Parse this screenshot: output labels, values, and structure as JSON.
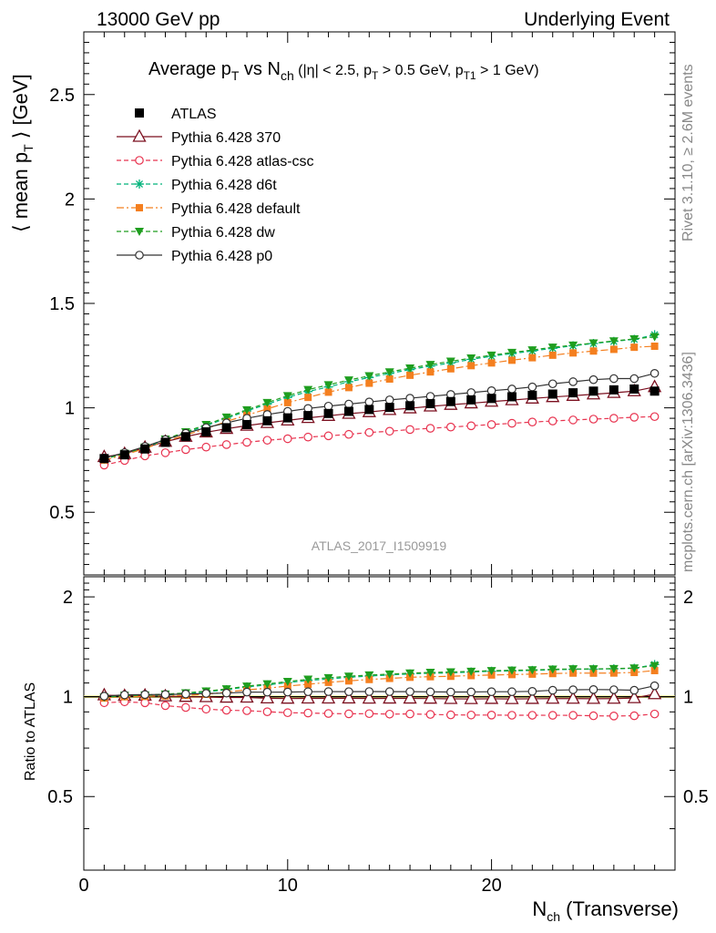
{
  "header": {
    "left": "13000 GeV pp",
    "right": "Underlying Event"
  },
  "title": {
    "main": "Average p",
    "sub_T": "T",
    "vs": " vs N",
    "sub_ch": "ch",
    "cuts_a": " (|η| < 2.5, p",
    "cuts_b": " > 0.5 GeV, p",
    "cuts_sub_T1": "T1",
    "cuts_c": " > 1 GeV)"
  },
  "side_text": {
    "rivet": "Rivet 3.1.10, ≥ 2.6M events",
    "mcplots": "mcplots.cern.ch [arXiv:1306.3436]"
  },
  "watermark": "ATLAS_2017_I1509919",
  "axes": {
    "top_ylabel_a": "⟨ mean p",
    "top_ylabel_sub": "T",
    "top_ylabel_b": " ⟩ [GeV]",
    "bottom_ylabel": "Ratio to ATLAS",
    "xlabel_a": "N",
    "xlabel_sub": "ch",
    "xlabel_b": " (Transverse)",
    "top_yticks": [
      "0.5",
      "1",
      "1.5",
      "2",
      "2.5"
    ],
    "bottom_yticks_left": [
      "0.5",
      "1",
      "2"
    ],
    "bottom_yticks_right": [
      "0.5",
      "1",
      "2"
    ],
    "xticks": [
      "0",
      "10",
      "20"
    ]
  },
  "chart_data": {
    "type": "line",
    "x": [
      1,
      2,
      3,
      4,
      5,
      6,
      7,
      8,
      9,
      10,
      11,
      12,
      13,
      14,
      15,
      16,
      17,
      18,
      19,
      20,
      21,
      22,
      23,
      24,
      25,
      26,
      27,
      28
    ],
    "xlim": [
      0,
      29
    ],
    "top_ylim": [
      0.2,
      2.8
    ],
    "ratio_ylim": [
      0.3,
      2.3
    ],
    "series": [
      {
        "name": "ATLAS",
        "color": "#000000",
        "marker": "filled-square",
        "line": "none",
        "values": [
          0.757,
          0.775,
          0.803,
          0.835,
          0.862,
          0.885,
          0.905,
          0.92,
          0.938,
          0.952,
          0.963,
          0.973,
          0.983,
          0.992,
          1.002,
          1.01,
          1.02,
          1.03,
          1.038,
          1.045,
          1.053,
          1.06,
          1.066,
          1.072,
          1.08,
          1.086,
          1.09,
          1.08
        ]
      },
      {
        "name": "Pythia 6.428 370",
        "color": "#7b0f1f",
        "marker": "open-triangle",
        "line": "solid",
        "values": [
          0.765,
          0.78,
          0.81,
          0.838,
          0.862,
          0.883,
          0.9,
          0.915,
          0.928,
          0.94,
          0.952,
          0.962,
          0.972,
          0.98,
          0.99,
          0.998,
          1.007,
          1.015,
          1.022,
          1.03,
          1.037,
          1.045,
          1.052,
          1.058,
          1.065,
          1.072,
          1.08,
          1.1
        ]
      },
      {
        "name": "Pythia 6.428 atlas-csc",
        "color": "#e8334f",
        "marker": "open-circle",
        "line": "dashed",
        "values": [
          0.726,
          0.748,
          0.77,
          0.785,
          0.8,
          0.812,
          0.824,
          0.835,
          0.845,
          0.852,
          0.86,
          0.866,
          0.873,
          0.882,
          0.888,
          0.896,
          0.902,
          0.908,
          0.914,
          0.92,
          0.926,
          0.932,
          0.937,
          0.942,
          0.946,
          0.95,
          0.955,
          0.958
        ]
      },
      {
        "name": "Pythia 6.428 d6t",
        "color": "#00b27a",
        "marker": "star",
        "line": "dashed",
        "values": [
          0.755,
          0.78,
          0.81,
          0.845,
          0.88,
          0.915,
          0.95,
          0.985,
          1.018,
          1.05,
          1.078,
          1.1,
          1.125,
          1.145,
          1.165,
          1.183,
          1.2,
          1.215,
          1.232,
          1.247,
          1.26,
          1.272,
          1.285,
          1.297,
          1.308,
          1.318,
          1.328,
          1.35
        ]
      },
      {
        "name": "Pythia 6.428 default",
        "color": "#f47f1f",
        "marker": "filled-square-small",
        "line": "dashdot",
        "values": [
          0.75,
          0.775,
          0.805,
          0.84,
          0.87,
          0.9,
          0.935,
          0.965,
          0.995,
          1.025,
          1.05,
          1.075,
          1.097,
          1.118,
          1.138,
          1.156,
          1.172,
          1.187,
          1.202,
          1.215,
          1.228,
          1.24,
          1.252,
          1.263,
          1.272,
          1.28,
          1.29,
          1.295
        ]
      },
      {
        "name": "Pythia 6.428 dw",
        "color": "#1f9e1f",
        "marker": "filled-triangle-down",
        "line": "dashed",
        "values": [
          0.755,
          0.782,
          0.812,
          0.85,
          0.885,
          0.92,
          0.955,
          0.99,
          1.025,
          1.058,
          1.087,
          1.11,
          1.133,
          1.153,
          1.172,
          1.19,
          1.207,
          1.223,
          1.238,
          1.252,
          1.265,
          1.277,
          1.29,
          1.3,
          1.31,
          1.32,
          1.33,
          1.34
        ]
      },
      {
        "name": "Pythia 6.428 p0",
        "color": "#333333",
        "marker": "open-circle",
        "line": "solid",
        "values": [
          0.76,
          0.785,
          0.815,
          0.848,
          0.878,
          0.905,
          0.928,
          0.95,
          0.968,
          0.983,
          0.997,
          1.008,
          1.018,
          1.028,
          1.038,
          1.046,
          1.055,
          1.064,
          1.073,
          1.082,
          1.09,
          1.1,
          1.115,
          1.125,
          1.135,
          1.14,
          1.14,
          1.165
        ]
      }
    ]
  }
}
